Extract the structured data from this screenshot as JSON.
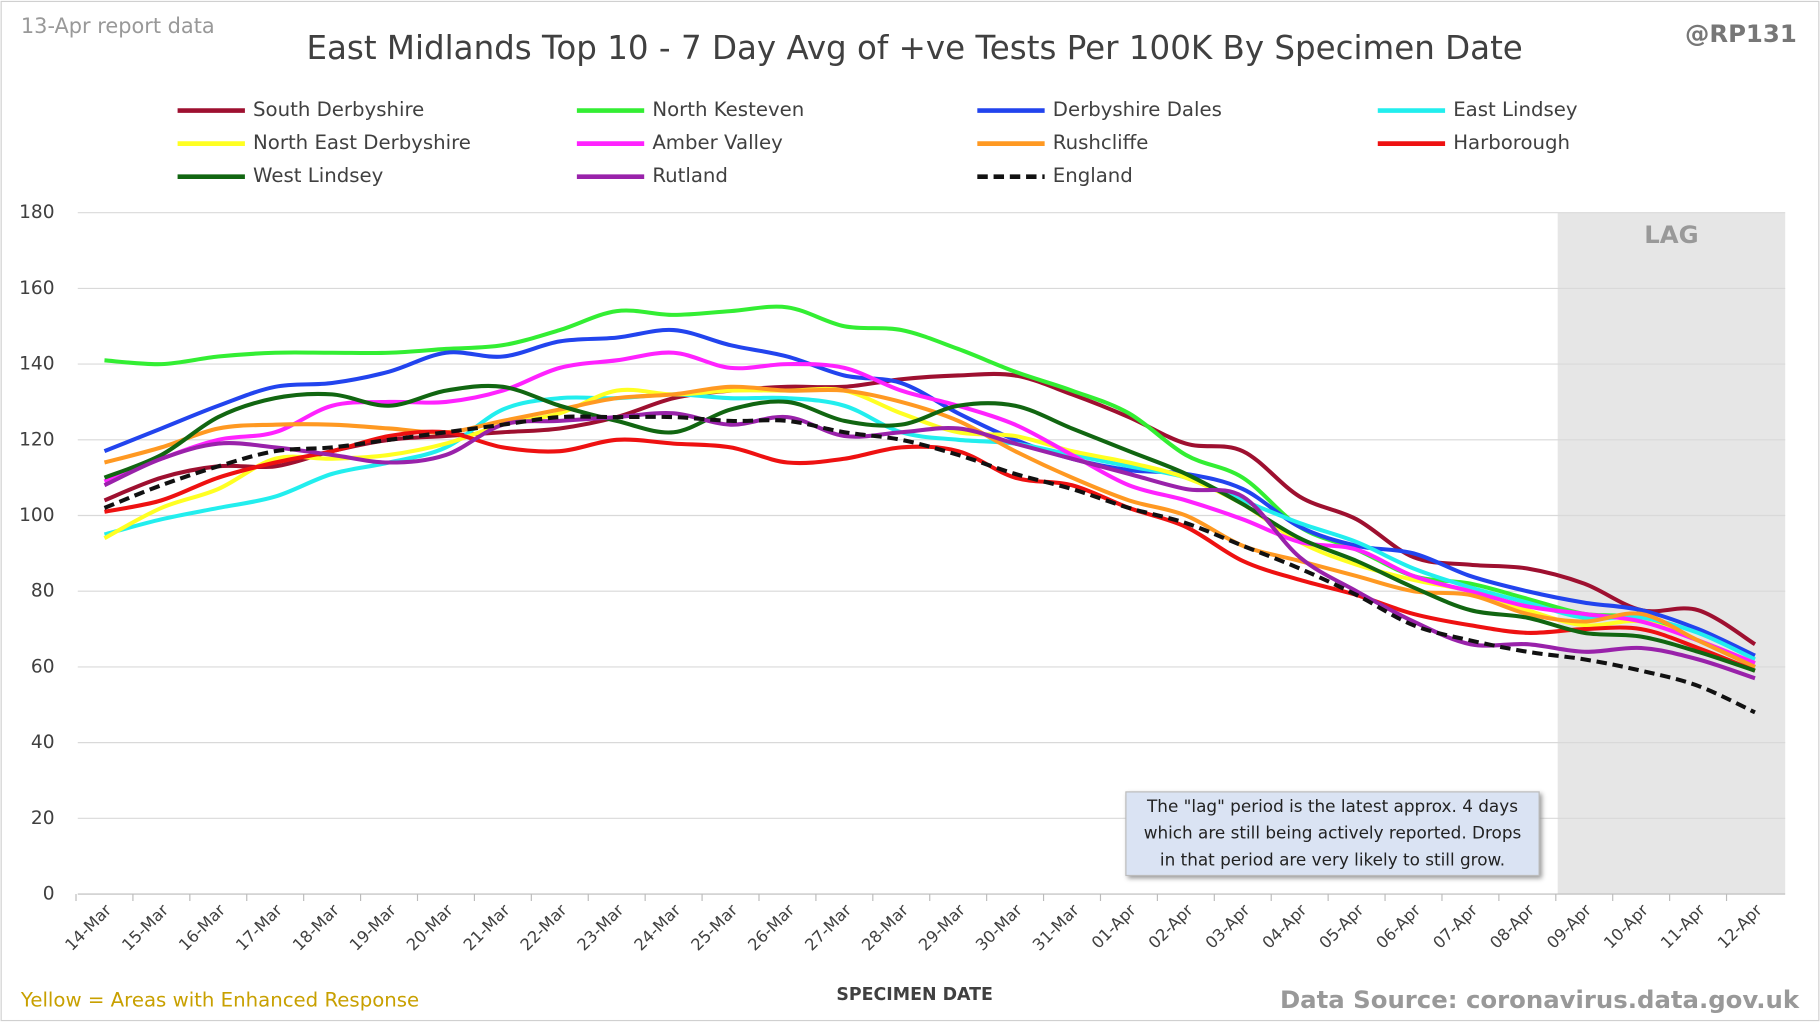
{
  "chart_data": {
    "type": "line",
    "title": "East Midlands Top 10 - 7 Day Avg of +ve Tests Per 100K By Specimen Date",
    "report_note": "13-Apr report data",
    "author": "@RP131",
    "lag_label": "LAG",
    "annotation": [
      "The \"lag\" period is the latest approx. 4 days",
      "which are still being actively reported.  Drops",
      "in that period are very likely to still grow."
    ],
    "footnote": "Yellow = Areas with Enhanced Response",
    "source": "Data Source: coronavirus.data.gov.uk",
    "xlabel": "SPECIMEN DATE",
    "categories": [
      "14-Mar",
      "15-Mar",
      "16-Mar",
      "17-Mar",
      "18-Mar",
      "19-Mar",
      "20-Mar",
      "21-Mar",
      "22-Mar",
      "23-Mar",
      "24-Mar",
      "25-Mar",
      "26-Mar",
      "27-Mar",
      "28-Mar",
      "29-Mar",
      "30-Mar",
      "31-Mar",
      "01-Apr",
      "02-Apr",
      "03-Apr",
      "04-Apr",
      "05-Apr",
      "06-Apr",
      "07-Apr",
      "08-Apr",
      "09-Apr",
      "10-Apr",
      "11-Apr",
      "12-Apr"
    ],
    "ylim": [
      0,
      180
    ],
    "yticks": [
      0,
      20,
      40,
      60,
      80,
      100,
      120,
      140,
      160,
      180
    ],
    "grid": true,
    "series": [
      {
        "name": "South Derbyshire",
        "color": "#9e1030",
        "values": [
          104,
          110,
          113,
          113,
          117,
          120,
          121,
          122,
          123,
          126,
          131,
          133,
          134,
          134,
          136,
          137,
          137,
          132,
          126,
          119,
          117,
          105,
          99,
          89,
          87,
          86,
          82,
          75,
          75,
          66
        ]
      },
      {
        "name": "North Kesteven",
        "color": "#33ee33",
        "values": [
          141,
          140,
          142,
          143,
          143,
          143,
          144,
          145,
          149,
          154,
          153,
          154,
          155,
          150,
          149,
          144,
          138,
          133,
          127,
          116,
          110,
          97,
          91,
          84,
          82,
          78,
          74,
          73,
          67,
          60
        ]
      },
      {
        "name": "Derbyshire Dales",
        "color": "#2244ee",
        "values": [
          117,
          123,
          129,
          134,
          135,
          138,
          143,
          142,
          146,
          147,
          149,
          145,
          142,
          137,
          135,
          127,
          120,
          115,
          112,
          111,
          107,
          97,
          92,
          90,
          84,
          80,
          77,
          75,
          70,
          63
        ]
      },
      {
        "name": "East Lindsey",
        "color": "#22eeee",
        "values": [
          95,
          99,
          102,
          105,
          111,
          114,
          118,
          128,
          131,
          131,
          132,
          131,
          131,
          129,
          122,
          120,
          119,
          116,
          113,
          110,
          104,
          98,
          93,
          86,
          81,
          77,
          73,
          73,
          69,
          62
        ]
      },
      {
        "name": "North East Derbyshire",
        "color": "#ffff22",
        "values": [
          94,
          102,
          107,
          115,
          115,
          116,
          119,
          124,
          127,
          133,
          132,
          133,
          133,
          133,
          127,
          122,
          121,
          117,
          114,
          110,
          103,
          93,
          87,
          83,
          80,
          75,
          71,
          72,
          67,
          61
        ]
      },
      {
        "name": "Amber Valley",
        "color": "#ff22ff",
        "values": [
          109,
          115,
          120,
          122,
          129,
          130,
          130,
          133,
          139,
          141,
          143,
          139,
          140,
          139,
          133,
          129,
          124,
          116,
          108,
          104,
          99,
          93,
          91,
          84,
          80,
          76,
          74,
          72,
          67,
          61
        ]
      },
      {
        "name": "Rushcliffe",
        "color": "#ff9922",
        "values": [
          114,
          118,
          123,
          124,
          124,
          123,
          122,
          125,
          128,
          131,
          132,
          134,
          133,
          133,
          130,
          125,
          117,
          110,
          104,
          100,
          92,
          88,
          84,
          80,
          79,
          74,
          72,
          74,
          67,
          60
        ]
      },
      {
        "name": "Harborough",
        "color": "#ee1111",
        "values": [
          101,
          104,
          110,
          114,
          117,
          121,
          122,
          118,
          117,
          120,
          119,
          118,
          114,
          115,
          118,
          117,
          110,
          108,
          102,
          97,
          88,
          83,
          79,
          74,
          71,
          69,
          70,
          70,
          65,
          59
        ]
      },
      {
        "name": "West Lindsey",
        "color": "#116611",
        "values": [
          110,
          116,
          126,
          131,
          132,
          129,
          133,
          134,
          129,
          125,
          122,
          128,
          130,
          125,
          124,
          129,
          129,
          123,
          117,
          111,
          103,
          94,
          88,
          81,
          75,
          73,
          69,
          68,
          64,
          59
        ]
      },
      {
        "name": "Rutland",
        "color": "#9922aa",
        "values": [
          108,
          115,
          119,
          118,
          116,
          114,
          116,
          124,
          125,
          126,
          127,
          124,
          126,
          121,
          122,
          123,
          119,
          115,
          111,
          107,
          105,
          89,
          80,
          72,
          66,
          66,
          64,
          65,
          62,
          57
        ]
      },
      {
        "name": "England",
        "color": "#111111",
        "dashed": true,
        "values": [
          102,
          108,
          113,
          117,
          118,
          120,
          122,
          124,
          126,
          126,
          126,
          125,
          125,
          122,
          120,
          116,
          111,
          107,
          102,
          98,
          92,
          86,
          79,
          71,
          67,
          64,
          62,
          59,
          55,
          48
        ]
      }
    ]
  }
}
